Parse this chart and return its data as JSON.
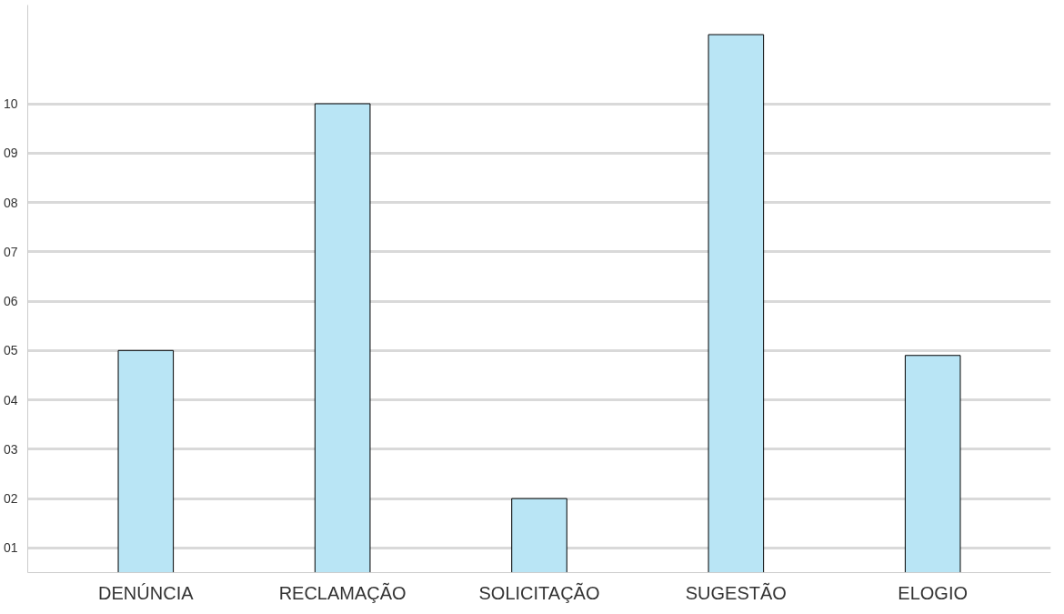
{
  "chart_data": {
    "type": "bar",
    "categories": [
      "DENÚNCIA",
      "RECLAMAÇÃO",
      "SOLICITAÇÃO",
      "SUGESTÃO",
      "ELOGIO"
    ],
    "values": [
      5,
      10,
      2,
      11.4,
      4.9
    ],
    "color": "#b9e5f5",
    "ylim": [
      0.5,
      12
    ],
    "yticks": [
      {
        "value": 1,
        "label": "01"
      },
      {
        "value": 2,
        "label": "02"
      },
      {
        "value": 3,
        "label": "03"
      },
      {
        "value": 4,
        "label": "04"
      },
      {
        "value": 5,
        "label": "05"
      },
      {
        "value": 6,
        "label": "06"
      },
      {
        "value": 7,
        "label": "07"
      },
      {
        "value": 8,
        "label": "08"
      },
      {
        "value": 9,
        "label": "09"
      },
      {
        "value": 10,
        "label": "10"
      }
    ],
    "grid": "y"
  }
}
